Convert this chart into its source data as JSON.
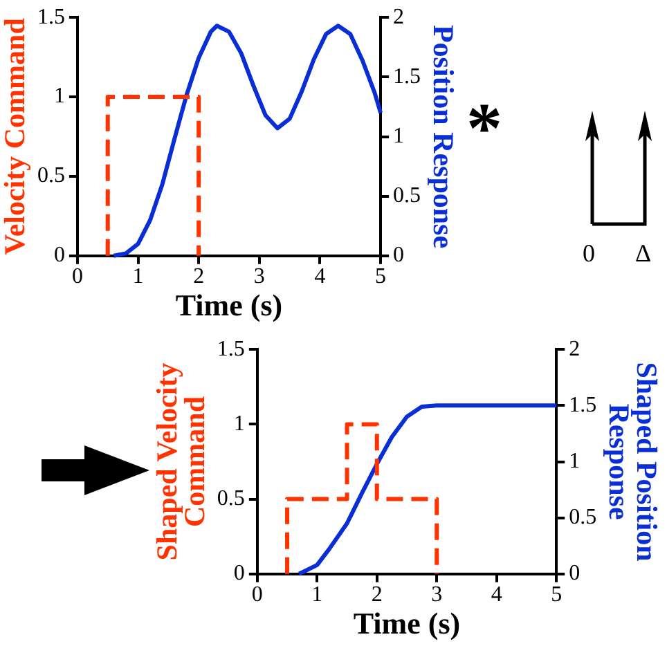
{
  "chart_data": [
    {
      "type": "line",
      "xlabel": "Time (s)",
      "ylabel": "Velocity Command",
      "y2label": "Position Response",
      "xlim": [
        0,
        5
      ],
      "xticks": [
        0,
        1,
        2,
        3,
        4,
        5
      ],
      "ylim": [
        0,
        1.5
      ],
      "yticks": [
        0,
        0.5,
        1,
        1.5
      ],
      "y2lim": [
        0,
        2
      ],
      "y2ticks": [
        0,
        0.5,
        1,
        1.5,
        2
      ],
      "grid": false,
      "legend": false,
      "marker": "none",
      "series": [
        {
          "color": "#ff3300",
          "line_style": "dashed",
          "x": [
            0.5,
            0.5,
            2,
            2
          ],
          "values": [
            0,
            1,
            1,
            0
          ]
        },
        {
          "color": "#0a2ed6",
          "line_style": "solid",
          "axis": "y2",
          "x": [
            0.6,
            0.8,
            1.0,
            1.2,
            1.4,
            1.6,
            1.8,
            2.0,
            2.2,
            2.3,
            2.5,
            2.7,
            2.9,
            3.1,
            3.3,
            3.5,
            3.7,
            3.9,
            4.1,
            4.3,
            4.5,
            4.7,
            4.9,
            5
          ],
          "values": [
            0,
            0.02,
            0.1,
            0.3,
            0.6,
            0.98,
            1.35,
            1.66,
            1.88,
            1.93,
            1.88,
            1.7,
            1.43,
            1.18,
            1.07,
            1.15,
            1.38,
            1.65,
            1.86,
            1.93,
            1.86,
            1.64,
            1.37,
            1.2
          ]
        }
      ]
    },
    {
      "type": "other",
      "annotations": [
        "*",
        "0",
        "Δ"
      ]
    },
    {
      "type": "line",
      "xlabel": "Time (s)",
      "ylabel": "Shaped Velocity\nCommand",
      "y2label": "Shaped Position\nResponse",
      "xlim": [
        0,
        5
      ],
      "xticks": [
        0,
        1,
        2,
        3,
        4,
        5
      ],
      "ylim": [
        0,
        1.5
      ],
      "yticks": [
        0,
        0.5,
        1,
        1.5
      ],
      "y2lim": [
        0,
        2
      ],
      "y2ticks": [
        0,
        0.5,
        1,
        1.5,
        2
      ],
      "grid": false,
      "legend": false,
      "marker": "none",
      "series": [
        {
          "color": "#ff3300",
          "line_style": "dashed",
          "x": [
            0.5,
            0.5,
            1.5,
            1.5,
            2,
            2,
            3,
            3
          ],
          "values": [
            0,
            0.5,
            0.5,
            1,
            1,
            0.5,
            0.5,
            0
          ]
        },
        {
          "color": "#0a2ed6",
          "line_style": "solid",
          "axis": "y2",
          "x": [
            0.7,
            1.0,
            1.2,
            1.5,
            1.75,
            2.0,
            2.25,
            2.5,
            2.75,
            3,
            5
          ],
          "values": [
            0,
            0.08,
            0.22,
            0.45,
            0.72,
            0.98,
            1.22,
            1.4,
            1.49,
            1.5,
            1.5
          ]
        }
      ]
    }
  ]
}
